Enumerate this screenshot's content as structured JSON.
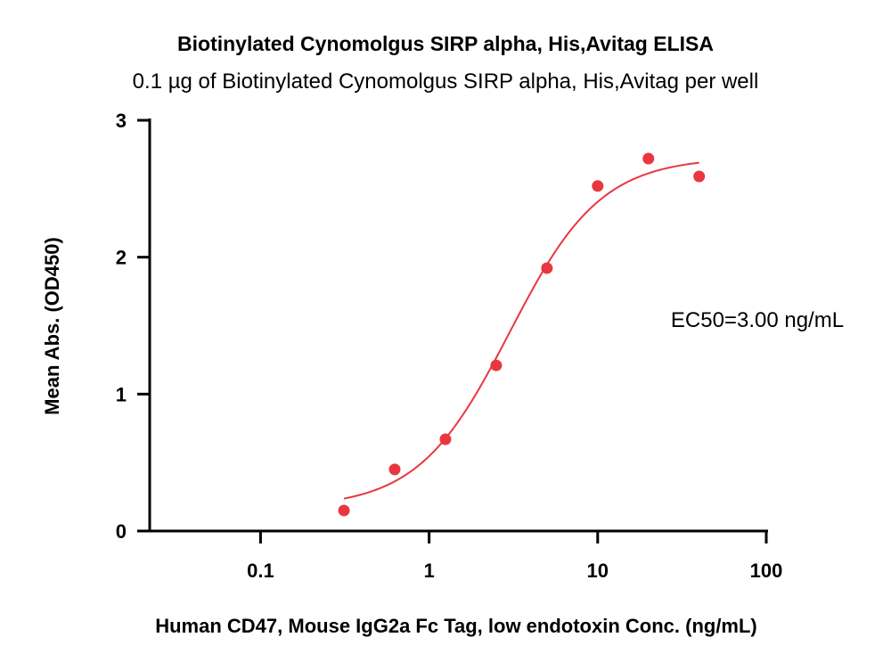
{
  "chart_data": {
    "type": "scatter",
    "title": "Biotinylated Cynomolgus SIRP alpha, His,Avitag ELISA",
    "subtitle": "0.1 µg of Biotinylated Cynomolgus SIRP alpha, His,Avitag per well",
    "xlabel": "Human CD47, Mouse IgG2a Fc Tag, low endotoxin Conc. (ng/mL)",
    "ylabel": "Mean Abs. (OD450)",
    "x_scale": "log",
    "xlim": [
      0.022,
      100
    ],
    "ylim": [
      0,
      3
    ],
    "x_ticks": [
      0.1,
      1,
      10,
      100
    ],
    "x_tick_labels": [
      "0.1",
      "1",
      "10",
      "100"
    ],
    "y_ticks": [
      0,
      1,
      2,
      3
    ],
    "y_tick_labels": [
      "0",
      "1",
      "2",
      "3"
    ],
    "grid": false,
    "color": "#e8373f",
    "series": [
      {
        "x": [
          0.3125,
          0.625,
          1.25,
          2.5,
          5,
          10,
          20,
          40
        ],
        "y": [
          0.15,
          0.45,
          0.67,
          1.21,
          1.92,
          2.52,
          2.72,
          2.59
        ]
      }
    ],
    "fit": {
      "model": "4PL",
      "bottom": 0.17,
      "top": 2.73,
      "ec50": 3.0,
      "hill": 1.6,
      "x_range": [
        0.3125,
        40
      ]
    },
    "annotation": "EC50=3.00 ng/mL"
  }
}
